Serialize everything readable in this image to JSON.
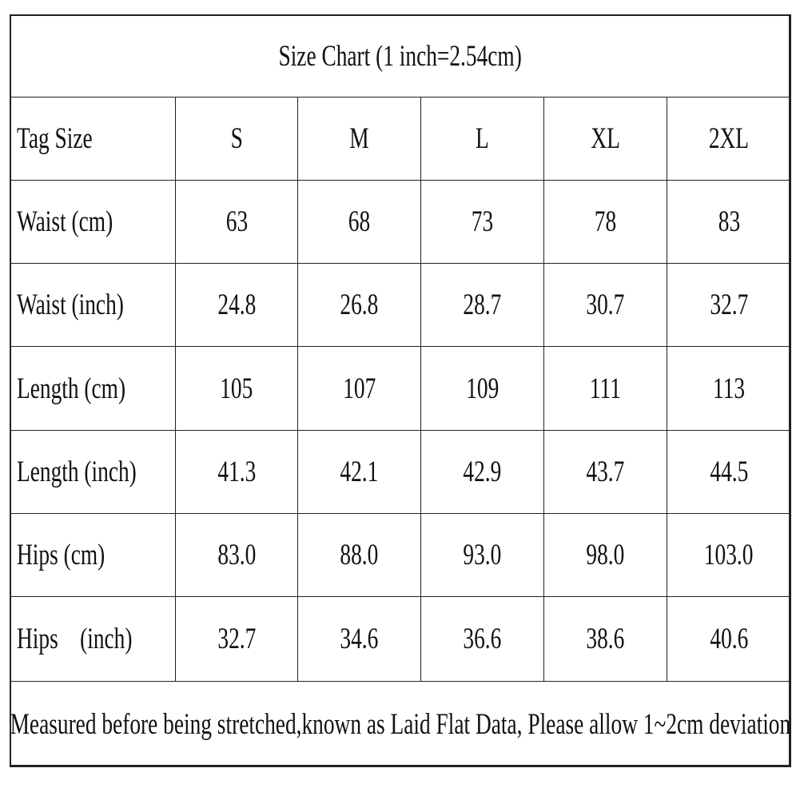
{
  "table": {
    "title": "Size Chart (1 inch=2.54cm)",
    "header": [
      "Tag Size",
      "S",
      "M",
      "L",
      "XL",
      "2XL"
    ],
    "rows": [
      [
        "Waist (cm)",
        "63",
        "68",
        "73",
        "78",
        "83"
      ],
      [
        "Waist (inch)",
        "24.8",
        "26.8",
        "28.7",
        "30.7",
        "32.7"
      ],
      [
        "Length (cm)",
        "105",
        "107",
        "109",
        "111",
        "113"
      ],
      [
        "Length (inch)",
        "41.3",
        "42.1",
        "42.9",
        "43.7",
        "44.5"
      ],
      [
        "Hips (cm)",
        "83.0",
        "88.0",
        "93.0",
        "98.0",
        "103.0"
      ],
      [
        "Hips    (inch)",
        "32.7",
        "34.6",
        "36.6",
        "38.6",
        "40.6"
      ]
    ],
    "footer": "Measured before being stretched,known as Laid Flat Data, Please allow 1~2cm deviation"
  }
}
